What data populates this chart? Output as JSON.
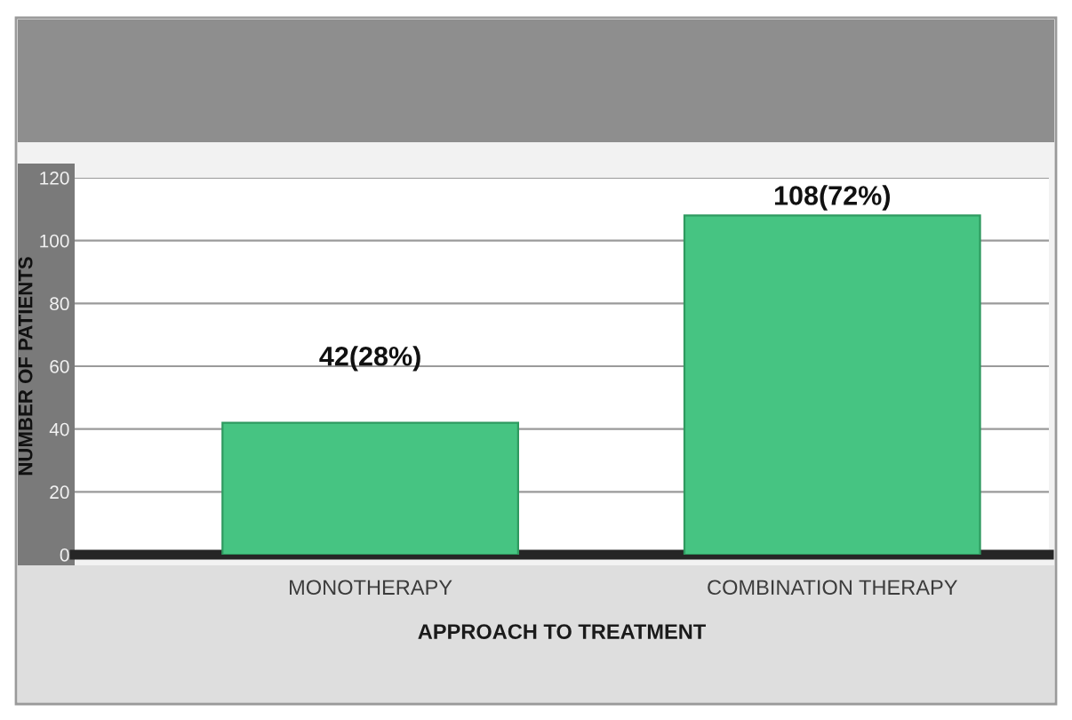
{
  "chart_data": {
    "type": "bar",
    "xlabel": "APPROACH TO TREATMENT",
    "ylabel": "NUMBER OF PATIENTS",
    "categories": [
      "MONOTHERAPY",
      "COMBINATION THERAPY"
    ],
    "values": [
      42,
      108
    ],
    "value_labels": [
      "42(28%)",
      "108(72%)"
    ],
    "color": "#46c482",
    "ylim": [
      0,
      120
    ],
    "yticks": [
      0,
      20,
      40,
      60,
      80,
      100,
      120
    ],
    "grid": "y"
  }
}
